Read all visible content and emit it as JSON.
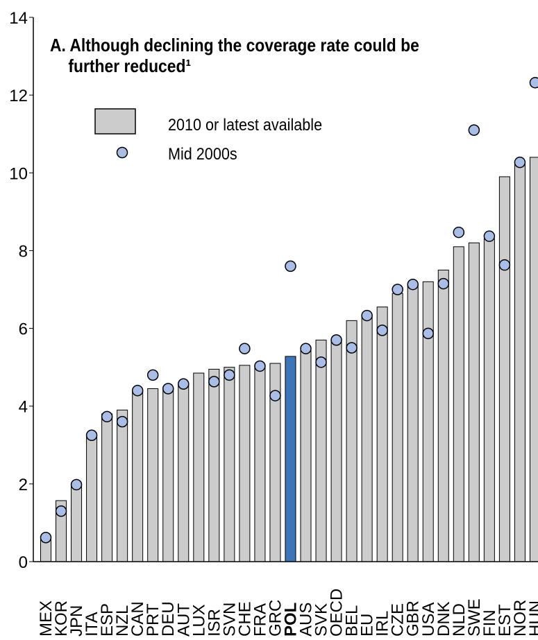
{
  "chart_data": {
    "type": "bar",
    "title": "A. Although declining the coverage rate could be further reduced¹",
    "categories": [
      "MEX",
      "KOR",
      "JPN",
      "ITA",
      "ESP",
      "NZL",
      "CAN",
      "PRT",
      "DEU",
      "AUT",
      "LUX",
      "ISR",
      "SVN",
      "CHE",
      "FRA",
      "GRC",
      "POL",
      "AUS",
      "SVK",
      "OECD",
      "BEL",
      "EU",
      "IRL",
      "CZE",
      "GBR",
      "USA",
      "DNK",
      "NLD",
      "SWE",
      "FIN",
      "EST",
      "NOR",
      "HUN"
    ],
    "series": [
      {
        "name": "2010 or latest available",
        "kind": "bar",
        "color": "#cccccc",
        "highlight_color": "#3e74b8",
        "highlight_category": 16,
        "values": [
          0.6,
          1.57,
          1.95,
          3.2,
          3.8,
          3.9,
          4.4,
          4.45,
          4.45,
          4.55,
          4.85,
          4.95,
          5.0,
          5.05,
          5.05,
          5.1,
          5.28,
          5.5,
          5.7,
          5.7,
          6.2,
          6.3,
          6.55,
          6.9,
          7.1,
          7.2,
          7.5,
          8.1,
          8.2,
          8.3,
          9.9,
          10.3,
          10.4
        ]
      },
      {
        "name": "Mid 2000s",
        "kind": "dot",
        "color": "#a9bde6",
        "values": [
          0.62,
          1.3,
          1.98,
          3.25,
          3.73,
          3.6,
          4.4,
          4.8,
          4.45,
          4.57,
          null,
          4.63,
          4.8,
          5.48,
          5.03,
          4.27,
          7.6,
          5.48,
          5.13,
          5.7,
          5.5,
          6.33,
          5.95,
          7.0,
          7.13,
          5.87,
          7.15,
          8.47,
          11.1,
          8.37,
          7.63,
          10.27,
          12.32
        ]
      }
    ],
    "ylim": [
      0,
      14
    ],
    "yticks": [
      0,
      2,
      4,
      6,
      8,
      10,
      12,
      14
    ]
  }
}
